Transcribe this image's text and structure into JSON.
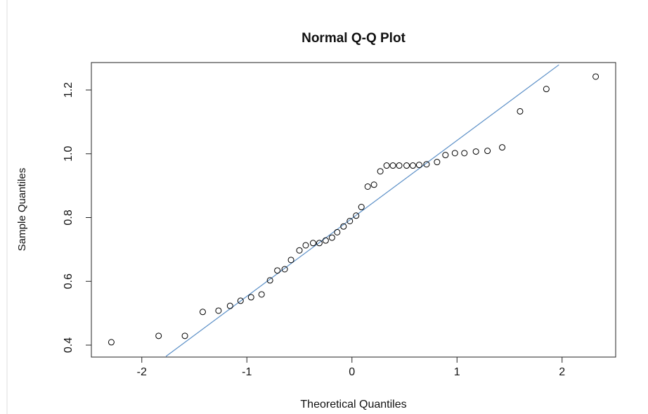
{
  "chart_data": {
    "type": "scatter",
    "title": "Normal Q-Q Plot",
    "x_label": "Theoretical Quantiles",
    "y_label": "Sample Quantiles",
    "xlim": [
      -2.48,
      2.51
    ],
    "ylim": [
      0.3625,
      1.286
    ],
    "xticks": [
      -2,
      -1,
      0,
      1,
      2
    ],
    "yticks": [
      0.4,
      0.6,
      0.8,
      {
        "value": 1,
        "label": "1.0"
      },
      1.2
    ],
    "point_color": "#000000",
    "x": [
      -2.29,
      -1.84,
      -1.59,
      -1.42,
      -1.27,
      -1.16,
      -1.06,
      -0.96,
      -0.86,
      -0.78,
      -0.71,
      -0.64,
      -0.58,
      -0.5,
      -0.44,
      -0.37,
      -0.31,
      -0.25,
      -0.19,
      -0.14,
      -0.08,
      -0.02,
      0.04,
      0.09,
      0.15,
      0.21,
      0.27,
      0.33,
      0.39,
      0.45,
      0.52,
      0.58,
      0.64,
      0.71,
      0.81,
      0.89,
      0.98,
      1.07,
      1.18,
      1.29,
      1.43,
      1.6,
      1.85,
      2.32
    ],
    "values": [
      0.409,
      0.429,
      0.429,
      0.504,
      0.508,
      0.523,
      0.539,
      0.55,
      0.559,
      0.603,
      0.634,
      0.638,
      0.667,
      0.697,
      0.713,
      0.72,
      0.72,
      0.728,
      0.737,
      0.754,
      0.772,
      0.789,
      0.806,
      0.833,
      0.897,
      0.903,
      0.945,
      0.963,
      0.963,
      0.963,
      0.963,
      0.963,
      0.965,
      0.967,
      0.974,
      0.996,
      1.002,
      1.002,
      1.007,
      1.009,
      1.02,
      1.133,
      1.203,
      1.242
    ],
    "reference_line": {
      "x": [
        -1.77,
        1.97
      ],
      "y": [
        0.3647,
        1.279
      ],
      "color": "#5b8fc7"
    }
  }
}
